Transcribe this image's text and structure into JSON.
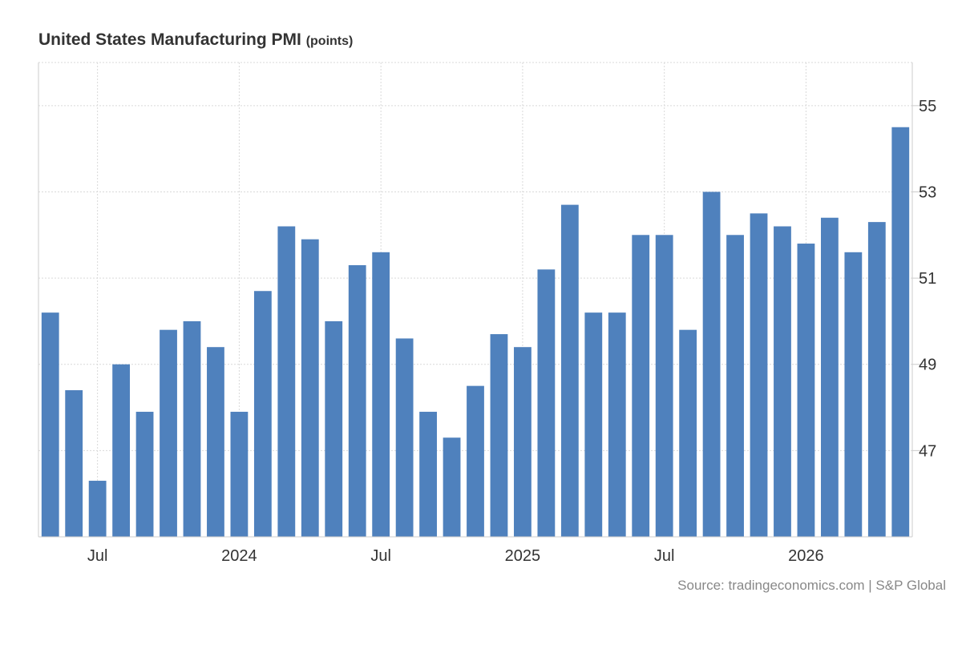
{
  "title": "United States Manufacturing PMI",
  "unit_label": "(points)",
  "source": "Source: tradingeconomics.com | S&P Global",
  "colors": {
    "bar": "#4f81bd",
    "grid": "#d9d9d9",
    "axis": "#cccccc",
    "text": "#333333",
    "source": "#888888"
  },
  "chart_data": {
    "type": "bar",
    "title": "United States Manufacturing PMI",
    "ylabel": "(points)",
    "ylim": [
      45,
      56
    ],
    "yticks": [
      47,
      49,
      51,
      53,
      55
    ],
    "y_axis_position": "right",
    "grid": true,
    "categories": [
      "2023-05",
      "2023-06",
      "2023-07",
      "2023-08",
      "2023-09",
      "2023-10",
      "2023-11",
      "2023-12",
      "2024-01",
      "2024-02",
      "2024-03",
      "2024-04",
      "2024-05",
      "2024-06",
      "2024-07",
      "2024-08",
      "2024-09",
      "2024-10",
      "2024-11",
      "2024-12",
      "2025-01",
      "2025-02",
      "2025-03",
      "2025-04",
      "2025-05",
      "2025-06",
      "2025-07",
      "2025-08",
      "2025-09",
      "2025-10",
      "2025-11",
      "2025-12",
      "2026-01",
      "2026-02",
      "2026-03",
      "2026-04",
      "2026-05"
    ],
    "values": [
      50.2,
      48.4,
      46.3,
      49.0,
      47.9,
      49.8,
      50.0,
      49.4,
      47.9,
      50.7,
      52.2,
      51.9,
      50.0,
      51.3,
      51.6,
      49.6,
      47.9,
      47.3,
      48.5,
      49.7,
      49.4,
      51.2,
      52.7,
      50.2,
      50.2,
      52.0,
      52.0,
      49.8,
      53.0,
      52.0,
      52.5,
      52.2,
      51.8,
      52.4,
      51.6,
      52.3,
      54.5
    ],
    "x_tick_labels": [
      {
        "label": "Jul",
        "category": "2023-07"
      },
      {
        "label": "2024",
        "category": "2024-01"
      },
      {
        "label": "Jul",
        "category": "2024-07"
      },
      {
        "label": "2025",
        "category": "2025-01"
      },
      {
        "label": "Jul",
        "category": "2025-07"
      },
      {
        "label": "2026",
        "category": "2026-01"
      }
    ]
  }
}
